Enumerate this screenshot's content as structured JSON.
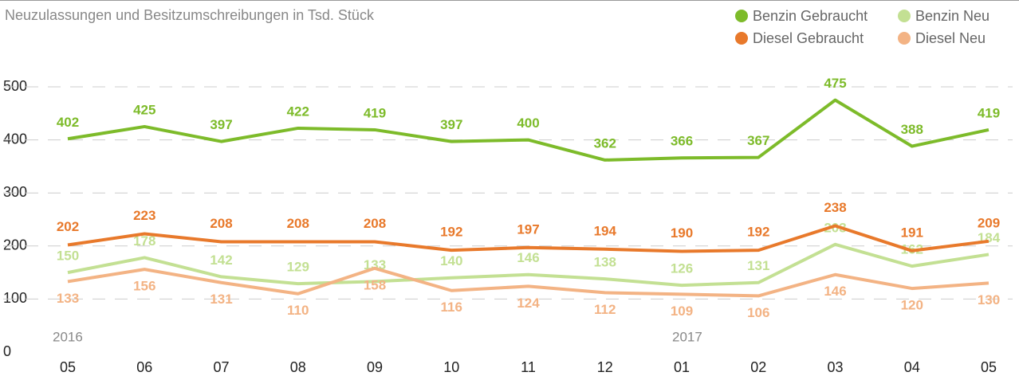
{
  "chart_data": {
    "type": "line",
    "title": "Neuzulassungen und Besitzumschreibungen in Tsd. Stück",
    "categories": [
      "05",
      "06",
      "07",
      "08",
      "09",
      "10",
      "11",
      "12",
      "01",
      "02",
      "03",
      "04",
      "05"
    ],
    "annotations": [
      "2016",
      "2017"
    ],
    "series": [
      {
        "name": "Benzin Gebraucht",
        "color": "#7dbb2a",
        "values": [
          402,
          425,
          397,
          422,
          419,
          397,
          400,
          362,
          366,
          367,
          475,
          388,
          419
        ]
      },
      {
        "name": "Benzin Neu",
        "color": "#c3e093",
        "values": [
          150,
          178,
          142,
          129,
          133,
          140,
          146,
          138,
          126,
          131,
          203,
          162,
          184
        ]
      },
      {
        "name": "Diesel Gebraucht",
        "color": "#e8792b",
        "values": [
          202,
          223,
          208,
          208,
          208,
          192,
          197,
          194,
          190,
          192,
          238,
          191,
          209
        ]
      },
      {
        "name": "Diesel Neu",
        "color": "#f3b384",
        "values": [
          133,
          156,
          131,
          110,
          158,
          116,
          124,
          112,
          109,
          106,
          146,
          120,
          130
        ]
      }
    ],
    "ylim": [
      0,
      500
    ],
    "yticks": [
      0,
      100,
      200,
      300,
      400,
      500
    ],
    "grid": true
  }
}
